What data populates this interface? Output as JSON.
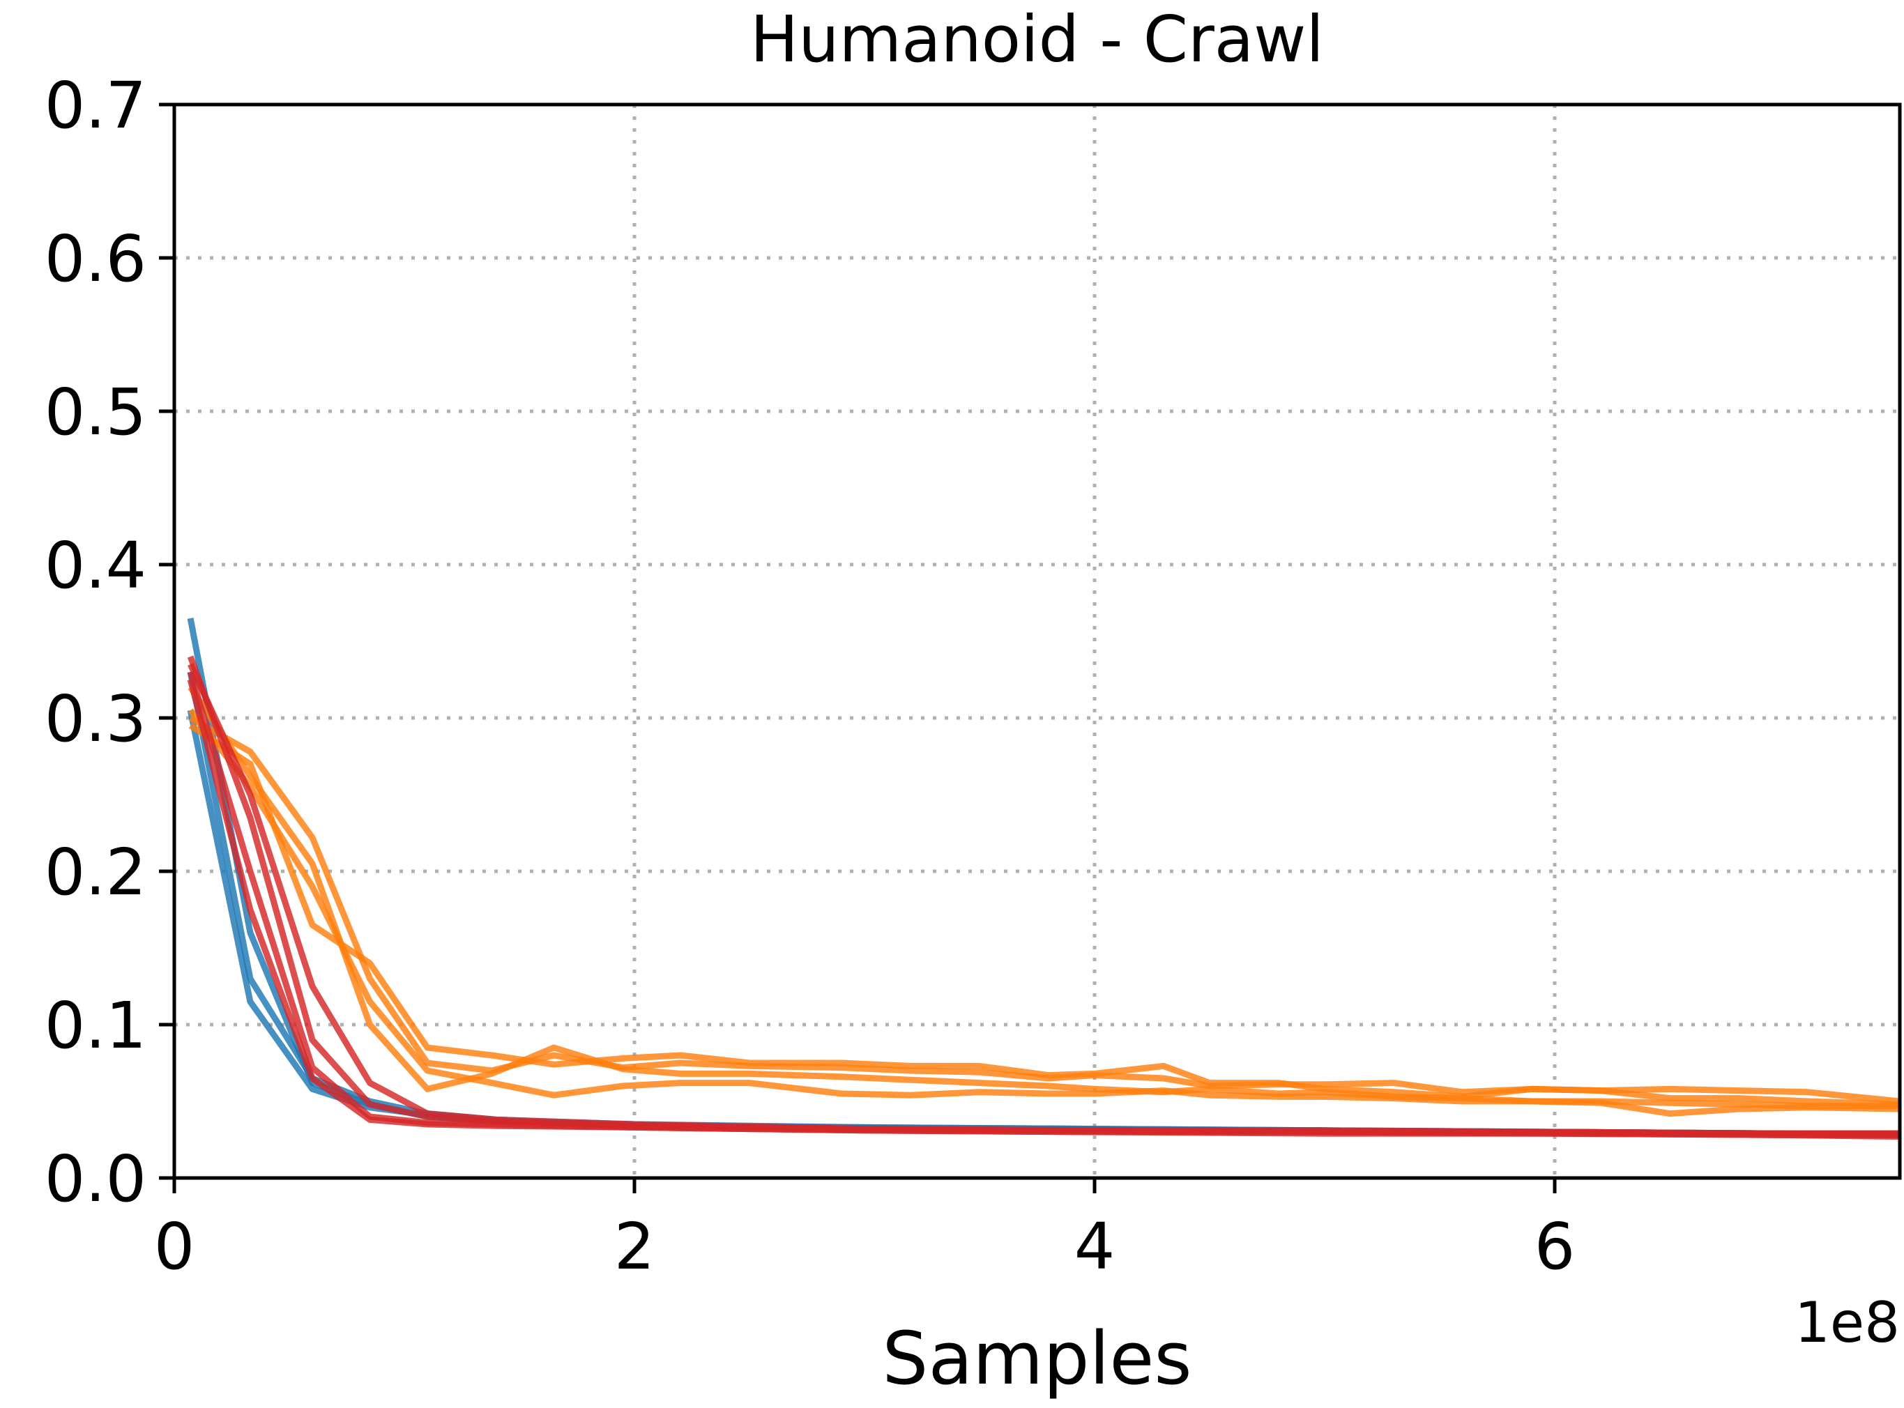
{
  "chart_data": {
    "type": "line",
    "title": "Humanoid - Crawl",
    "xlabel": "Samples",
    "ylabel": "",
    "x_offset_label": "1e8",
    "xlim": [
      0,
      7.5
    ],
    "ylim": [
      0,
      0.7
    ],
    "x_ticks": [
      0,
      2,
      4,
      6
    ],
    "x_tick_labels": [
      "0",
      "2",
      "4",
      "6"
    ],
    "y_ticks": [
      0.0,
      0.1,
      0.2,
      0.3,
      0.4,
      0.5,
      0.6,
      0.7
    ],
    "y_tick_labels": [
      "0.0",
      "0.1",
      "0.2",
      "0.3",
      "0.4",
      "0.5",
      "0.6",
      "0.7"
    ],
    "grid": true,
    "colors": {
      "blue": "#1f77b4",
      "orange": "#ff7f0e",
      "red": "#d62728"
    },
    "series": [
      {
        "color": "#1f77b4",
        "x": [
          0.07,
          0.33,
          0.6,
          0.85,
          1.1,
          1.4,
          2.0,
          3.0,
          4.0,
          5.0,
          6.0,
          7.0,
          7.5
        ],
        "y": [
          0.365,
          0.16,
          0.062,
          0.048,
          0.04,
          0.037,
          0.034,
          0.033,
          0.032,
          0.031,
          0.03,
          0.029,
          0.028
        ]
      },
      {
        "color": "#1f77b4",
        "x": [
          0.07,
          0.33,
          0.6,
          0.85,
          1.1,
          1.4,
          2.0,
          3.0,
          4.0,
          5.0,
          6.0,
          7.0,
          7.5
        ],
        "y": [
          0.33,
          0.13,
          0.065,
          0.05,
          0.042,
          0.038,
          0.035,
          0.033,
          0.032,
          0.031,
          0.03,
          0.029,
          0.029
        ]
      },
      {
        "color": "#1f77b4",
        "x": [
          0.07,
          0.33,
          0.6,
          0.85,
          1.1,
          1.4,
          2.0,
          3.0,
          4.0,
          5.0,
          6.0,
          7.0,
          7.5
        ],
        "y": [
          0.305,
          0.115,
          0.058,
          0.046,
          0.041,
          0.037,
          0.034,
          0.032,
          0.031,
          0.03,
          0.03,
          0.029,
          0.028
        ]
      },
      {
        "color": "#ff7f0e",
        "x": [
          0.07,
          0.33,
          0.6,
          0.85,
          1.1,
          1.38,
          1.65,
          1.95,
          2.2,
          2.5,
          2.9,
          3.2,
          3.5,
          3.8,
          4.0,
          4.3,
          4.5,
          4.8,
          5.0,
          5.3,
          5.6,
          5.9,
          6.2,
          6.5,
          6.8,
          7.1,
          7.5
        ],
        "y": [
          0.3,
          0.278,
          0.222,
          0.13,
          0.075,
          0.07,
          0.08,
          0.072,
          0.075,
          0.073,
          0.072,
          0.07,
          0.069,
          0.065,
          0.067,
          0.065,
          0.06,
          0.061,
          0.061,
          0.062,
          0.056,
          0.058,
          0.057,
          0.058,
          0.057,
          0.056,
          0.05
        ]
      },
      {
        "color": "#ff7f0e",
        "x": [
          0.07,
          0.33,
          0.6,
          0.85,
          1.1,
          1.38,
          1.65,
          1.95,
          2.2,
          2.5,
          2.9,
          3.2,
          3.5,
          3.8,
          4.0,
          4.3,
          4.5,
          4.8,
          5.0,
          5.3,
          5.6,
          5.9,
          6.2,
          6.5,
          6.8,
          7.1,
          7.5
        ],
        "y": [
          0.295,
          0.27,
          0.165,
          0.14,
          0.085,
          0.08,
          0.074,
          0.078,
          0.08,
          0.075,
          0.075,
          0.073,
          0.073,
          0.067,
          0.068,
          0.073,
          0.062,
          0.062,
          0.058,
          0.056,
          0.053,
          0.058,
          0.057,
          0.052,
          0.052,
          0.05,
          0.048
        ]
      },
      {
        "color": "#ff7f0e",
        "x": [
          0.07,
          0.33,
          0.6,
          0.85,
          1.1,
          1.38,
          1.65,
          1.95,
          2.2,
          2.5,
          2.9,
          3.2,
          3.5,
          3.8,
          4.0,
          4.3,
          4.5,
          4.8,
          5.0,
          5.3,
          5.6,
          5.9,
          6.2,
          6.5,
          6.8,
          7.1,
          7.5
        ],
        "y": [
          0.32,
          0.262,
          0.205,
          0.1,
          0.058,
          0.068,
          0.085,
          0.071,
          0.068,
          0.068,
          0.066,
          0.064,
          0.062,
          0.06,
          0.058,
          0.056,
          0.058,
          0.055,
          0.056,
          0.053,
          0.052,
          0.05,
          0.05,
          0.049,
          0.048,
          0.047,
          0.047
        ]
      },
      {
        "color": "#ff7f0e",
        "x": [
          0.07,
          0.33,
          0.6,
          0.85,
          1.1,
          1.38,
          1.65,
          1.95,
          2.2,
          2.5,
          2.9,
          3.2,
          3.5,
          3.8,
          4.0,
          4.3,
          4.5,
          4.8,
          5.0,
          5.3,
          5.6,
          5.9,
          6.2,
          6.5,
          6.8,
          7.1,
          7.5
        ],
        "y": [
          0.305,
          0.255,
          0.19,
          0.115,
          0.07,
          0.062,
          0.054,
          0.06,
          0.062,
          0.062,
          0.055,
          0.054,
          0.056,
          0.055,
          0.055,
          0.057,
          0.054,
          0.053,
          0.053,
          0.052,
          0.05,
          0.05,
          0.049,
          0.042,
          0.045,
          0.046,
          0.045
        ]
      },
      {
        "color": "#d62728",
        "x": [
          0.07,
          0.33,
          0.6,
          0.85,
          1.1,
          1.4,
          2.0,
          3.0,
          4.0,
          5.0,
          6.0,
          7.0,
          7.5
        ],
        "y": [
          0.34,
          0.235,
          0.09,
          0.048,
          0.04,
          0.037,
          0.034,
          0.032,
          0.031,
          0.03,
          0.03,
          0.029,
          0.029
        ]
      },
      {
        "color": "#d62728",
        "x": [
          0.07,
          0.33,
          0.6,
          0.85,
          1.1,
          1.4,
          2.0,
          3.0,
          4.0,
          5.0,
          6.0,
          7.0,
          7.5
        ],
        "y": [
          0.335,
          0.25,
          0.125,
          0.062,
          0.042,
          0.038,
          0.035,
          0.032,
          0.031,
          0.031,
          0.03,
          0.029,
          0.029
        ]
      },
      {
        "color": "#d62728",
        "x": [
          0.07,
          0.33,
          0.6,
          0.85,
          1.1,
          1.4,
          2.0,
          3.0,
          4.0,
          5.0,
          6.0,
          7.0,
          7.5
        ],
        "y": [
          0.33,
          0.2,
          0.072,
          0.04,
          0.036,
          0.035,
          0.033,
          0.031,
          0.03,
          0.03,
          0.029,
          0.028,
          0.028
        ]
      },
      {
        "color": "#d62728",
        "x": [
          0.07,
          0.33,
          0.6,
          0.85,
          1.1,
          1.4,
          2.0,
          3.0,
          4.0,
          5.0,
          6.0,
          7.0,
          7.5
        ],
        "y": [
          0.325,
          0.175,
          0.065,
          0.038,
          0.035,
          0.034,
          0.033,
          0.031,
          0.03,
          0.029,
          0.029,
          0.028,
          0.027
        ]
      }
    ]
  }
}
